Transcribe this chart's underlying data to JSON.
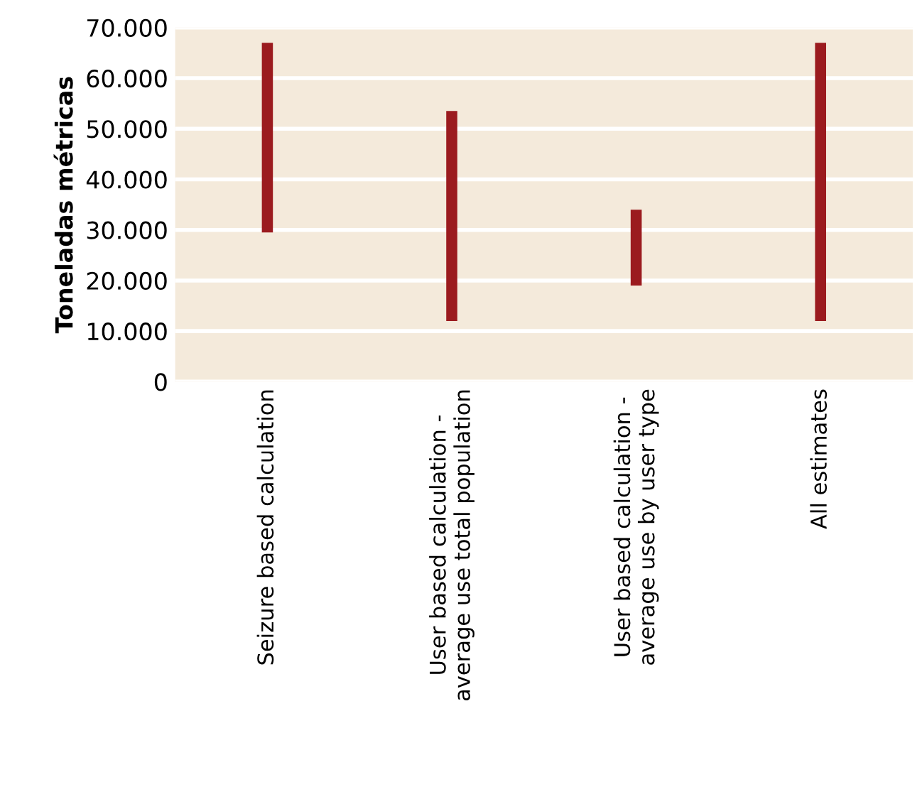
{
  "chart_data": {
    "type": "bar",
    "ylabel": "Toneladas métricas",
    "categories": [
      "Seizure based calculation",
      "User based calculation -\naverage use total population",
      "User based calculation -\naverage use by user type",
      "All estimates"
    ],
    "base": [
      29500,
      12000,
      19000,
      12000
    ],
    "values": [
      37500,
      41500,
      15000,
      55000
    ],
    "color": "#9b1b1f",
    "ylim": [
      0,
      70000
    ],
    "yticks": [
      {
        "value": 0,
        "label": "0"
      },
      {
        "value": 10000,
        "label": "10.000"
      },
      {
        "value": 20000,
        "label": "20.000"
      },
      {
        "value": 30000,
        "label": "30.000"
      },
      {
        "value": 40000,
        "label": "40.000"
      },
      {
        "value": 50000,
        "label": "50.000"
      },
      {
        "value": 60000,
        "label": "60.000"
      },
      {
        "value": 70000,
        "label": "70.000"
      }
    ],
    "grid": "y"
  }
}
